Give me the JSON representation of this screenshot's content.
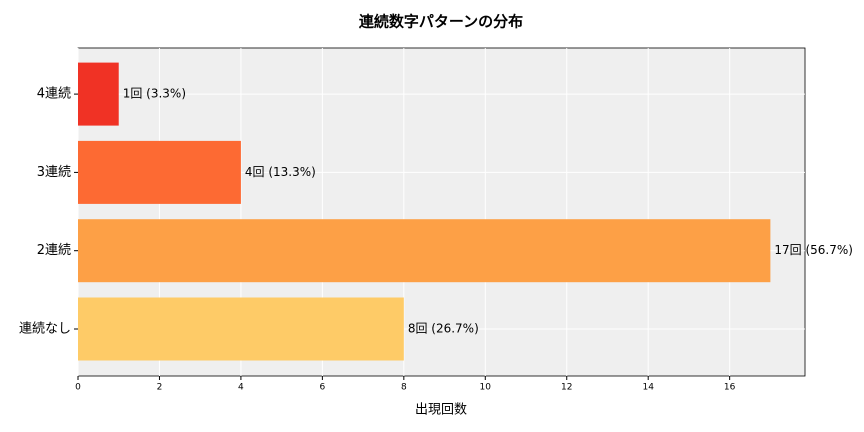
{
  "chart_data": {
    "type": "barh",
    "title": "連続数字パターンの分布",
    "xlabel": "出現回数",
    "categories": [
      "連続なし",
      "2連続",
      "3連続",
      "4連続"
    ],
    "values": [
      8,
      17,
      4,
      1
    ],
    "value_labels": [
      "8回 (26.7%)",
      "17回 (56.7%)",
      "4回 (13.3%)",
      "1回 (3.3%)"
    ],
    "colors": [
      "#fecb67",
      "#fda046",
      "#fd6a33",
      "#f03225"
    ],
    "xlim": [
      0,
      17.85
    ],
    "xticks": [
      0,
      2,
      4,
      6,
      8,
      10,
      12,
      14,
      16
    ],
    "grid": true
  }
}
